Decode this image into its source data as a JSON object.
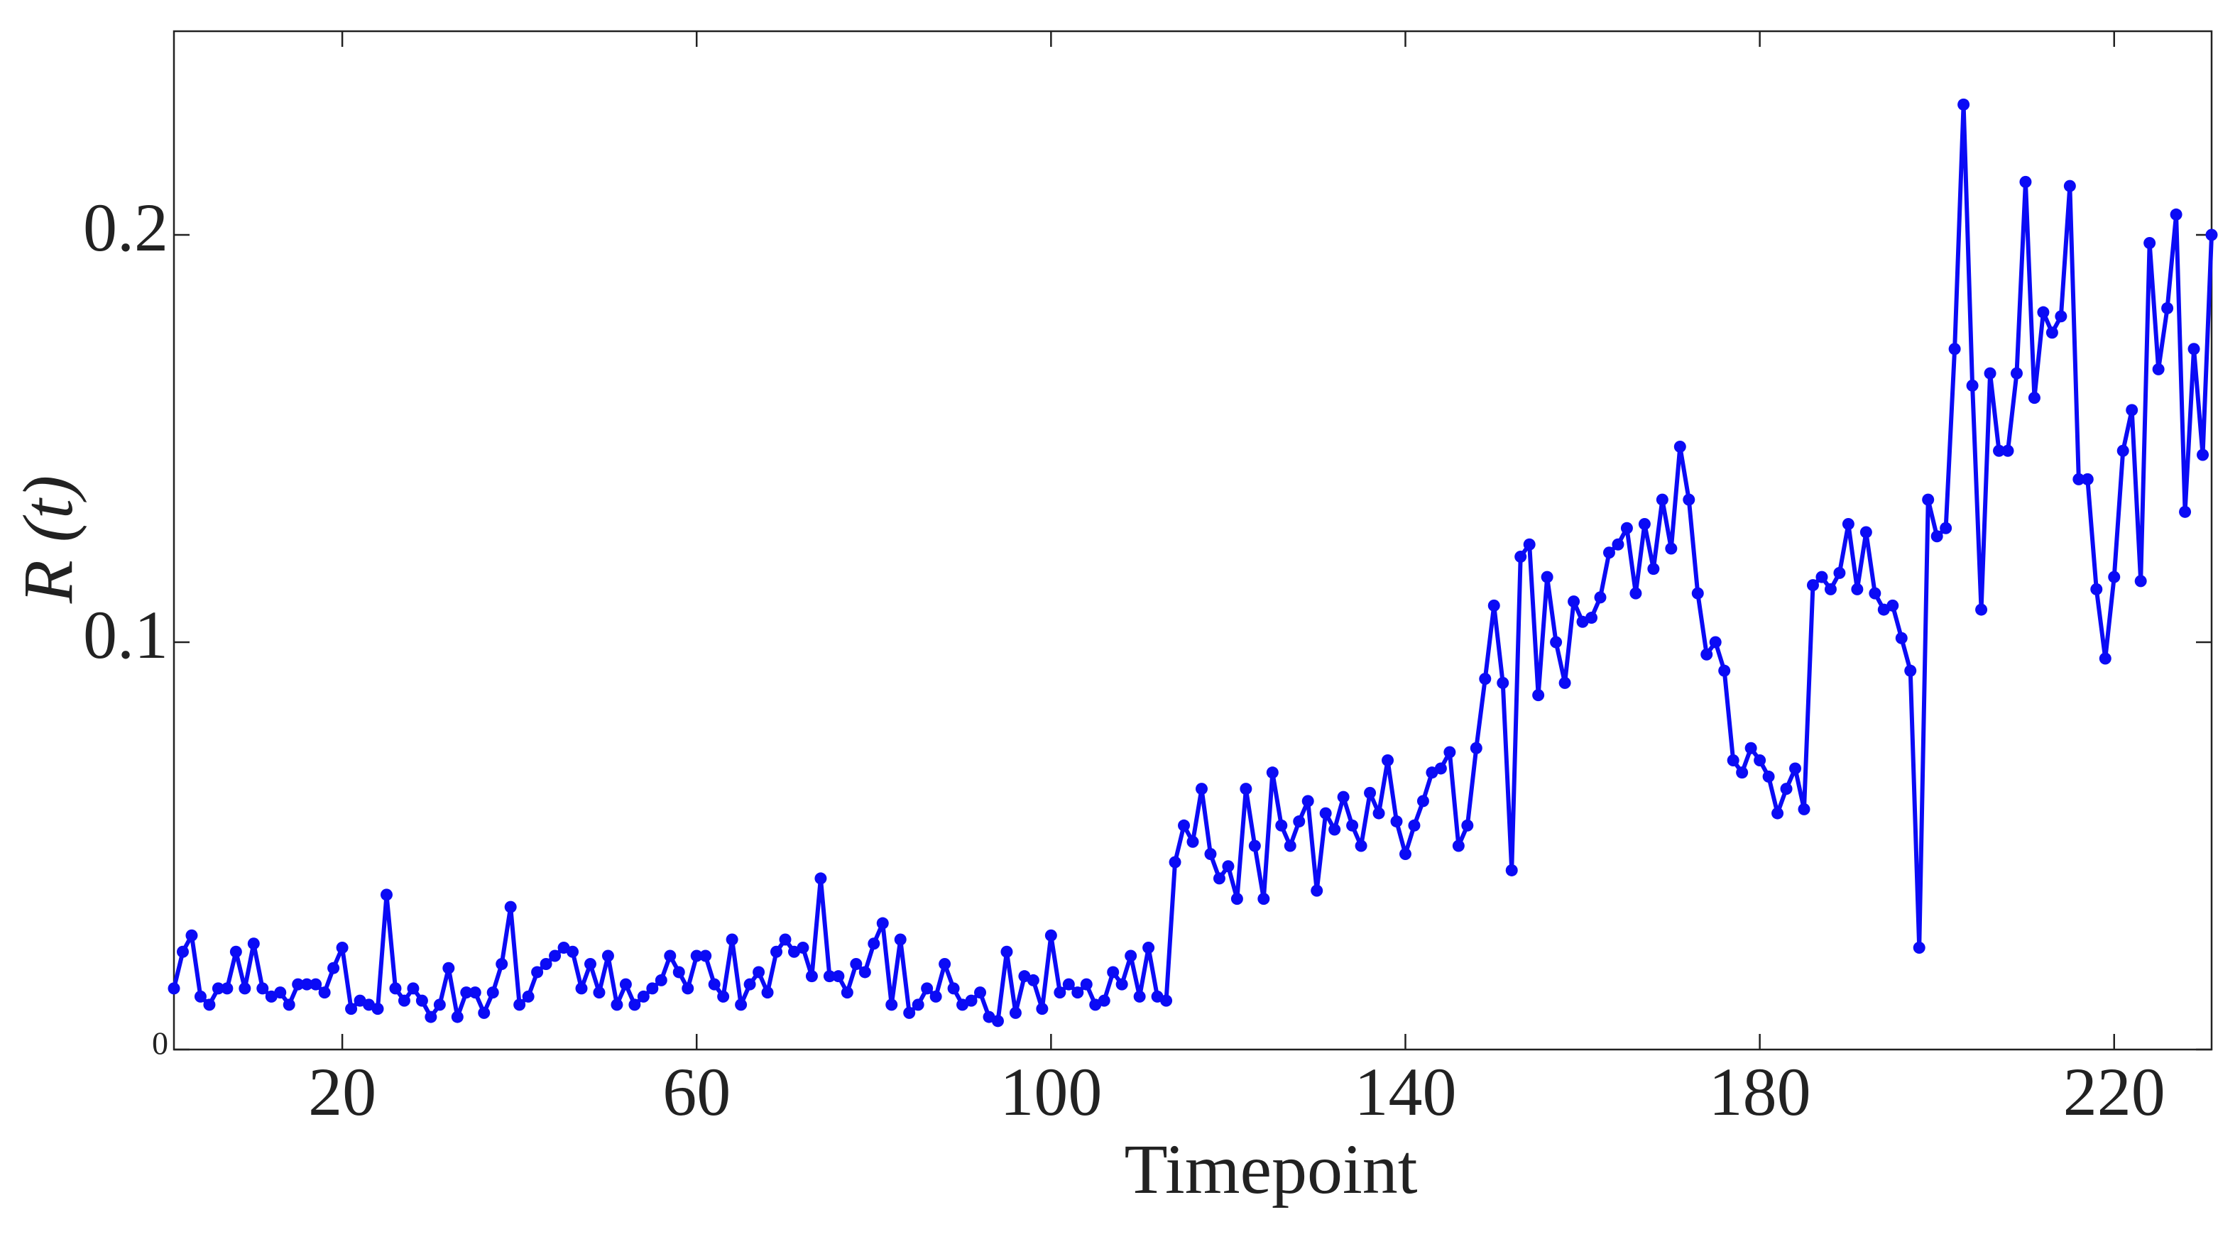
{
  "chart_data": {
    "type": "line",
    "x_label": "Timepoint",
    "y_label": "R (t)",
    "xlim": [
      1,
      231
    ],
    "xticks": [
      20,
      60,
      100,
      140,
      180,
      220
    ],
    "ylim": [
      0,
      0.25
    ],
    "yticks": [
      0,
      0.1,
      0.2
    ],
    "markers": true,
    "x": [
      1,
      2,
      3,
      4,
      5,
      6,
      7,
      8,
      9,
      10,
      11,
      12,
      13,
      14,
      15,
      16,
      17,
      18,
      19,
      20,
      21,
      22,
      23,
      24,
      25,
      26,
      27,
      28,
      29,
      30,
      31,
      32,
      33,
      34,
      35,
      36,
      37,
      38,
      39,
      40,
      41,
      42,
      43,
      44,
      45,
      46,
      47,
      48,
      49,
      50,
      51,
      52,
      53,
      54,
      55,
      56,
      57,
      58,
      59,
      60,
      61,
      62,
      63,
      64,
      65,
      66,
      67,
      68,
      69,
      70,
      71,
      72,
      73,
      74,
      75,
      76,
      77,
      78,
      79,
      80,
      81,
      82,
      83,
      84,
      85,
      86,
      87,
      88,
      89,
      90,
      91,
      92,
      93,
      94,
      95,
      96,
      97,
      98,
      99,
      100,
      101,
      102,
      103,
      104,
      105,
      106,
      107,
      108,
      109,
      110,
      111,
      112,
      113,
      114,
      115,
      116,
      117,
      118,
      119,
      120,
      121,
      122,
      123,
      124,
      125,
      126,
      127,
      128,
      129,
      130,
      131,
      132,
      133,
      134,
      135,
      136,
      137,
      138,
      139,
      140,
      141,
      142,
      143,
      144,
      145,
      146,
      147,
      148,
      149,
      150,
      151,
      152,
      153,
      154,
      155,
      156,
      157,
      158,
      159,
      160,
      161,
      162,
      163,
      164,
      165,
      166,
      167,
      168,
      169,
      170,
      171,
      172,
      173,
      174,
      175,
      176,
      177,
      178,
      179,
      180,
      181,
      182,
      183,
      184,
      185,
      186,
      187,
      188,
      189,
      190,
      191,
      192,
      193,
      194,
      195,
      196,
      197,
      198,
      199,
      200,
      201,
      202,
      203,
      204,
      205,
      206,
      207,
      208,
      209,
      210,
      211,
      212,
      213,
      214,
      215,
      216,
      217,
      218,
      219,
      220,
      221,
      222,
      223,
      224,
      225,
      226,
      227,
      228,
      229,
      230,
      231
    ],
    "series": [
      {
        "color": "#0b0bf5",
        "values": [
          0.015,
          0.024,
          0.028,
          0.013,
          0.011,
          0.015,
          0.015,
          0.024,
          0.015,
          0.026,
          0.015,
          0.013,
          0.014,
          0.011,
          0.016,
          0.016,
          0.016,
          0.014,
          0.02,
          0.025,
          0.01,
          0.012,
          0.011,
          0.01,
          0.038,
          0.015,
          0.012,
          0.015,
          0.012,
          0.008,
          0.011,
          0.02,
          0.008,
          0.014,
          0.014,
          0.009,
          0.014,
          0.021,
          0.035,
          0.011,
          0.013,
          0.019,
          0.021,
          0.023,
          0.025,
          0.024,
          0.015,
          0.021,
          0.014,
          0.023,
          0.011,
          0.016,
          0.011,
          0.013,
          0.015,
          0.017,
          0.023,
          0.019,
          0.015,
          0.023,
          0.023,
          0.016,
          0.013,
          0.027,
          0.011,
          0.016,
          0.019,
          0.014,
          0.024,
          0.027,
          0.024,
          0.025,
          0.018,
          0.042,
          0.018,
          0.018,
          0.014,
          0.021,
          0.019,
          0.026,
          0.031,
          0.011,
          0.027,
          0.009,
          0.011,
          0.015,
          0.013,
          0.021,
          0.015,
          0.011,
          0.012,
          0.014,
          0.008,
          0.007,
          0.024,
          0.009,
          0.018,
          0.017,
          0.01,
          0.028,
          0.014,
          0.016,
          0.014,
          0.016,
          0.011,
          0.012,
          0.019,
          0.016,
          0.023,
          0.013,
          0.025,
          0.013,
          0.012,
          0.046,
          0.055,
          0.051,
          0.064,
          0.048,
          0.042,
          0.045,
          0.037,
          0.064,
          0.05,
          0.037,
          0.068,
          0.055,
          0.05,
          0.056,
          0.061,
          0.039,
          0.058,
          0.054,
          0.062,
          0.055,
          0.05,
          0.063,
          0.058,
          0.071,
          0.056,
          0.048,
          0.055,
          0.061,
          0.068,
          0.069,
          0.073,
          0.05,
          0.055,
          0.074,
          0.091,
          0.109,
          0.09,
          0.044,
          0.121,
          0.124,
          0.087,
          0.116,
          0.1,
          0.09,
          0.11,
          0.105,
          0.106,
          0.111,
          0.122,
          0.124,
          0.128,
          0.112,
          0.129,
          0.118,
          0.135,
          0.123,
          0.148,
          0.135,
          0.112,
          0.097,
          0.1,
          0.093,
          0.071,
          0.068,
          0.074,
          0.071,
          0.067,
          0.058,
          0.064,
          0.069,
          0.059,
          0.114,
          0.116,
          0.113,
          0.117,
          0.129,
          0.113,
          0.127,
          0.112,
          0.108,
          0.109,
          0.101,
          0.093,
          0.025,
          0.135,
          0.126,
          0.128,
          0.172,
          0.232,
          0.163,
          0.108,
          0.166,
          0.147,
          0.147,
          0.166,
          0.213,
          0.16,
          0.181,
          0.176,
          0.18,
          0.212,
          0.14,
          0.14,
          0.113,
          0.096,
          0.116,
          0.147,
          0.157,
          0.115,
          0.198,
          0.167,
          0.182,
          0.205,
          0.132,
          0.172,
          0.146,
          0.2
        ]
      }
    ]
  }
}
